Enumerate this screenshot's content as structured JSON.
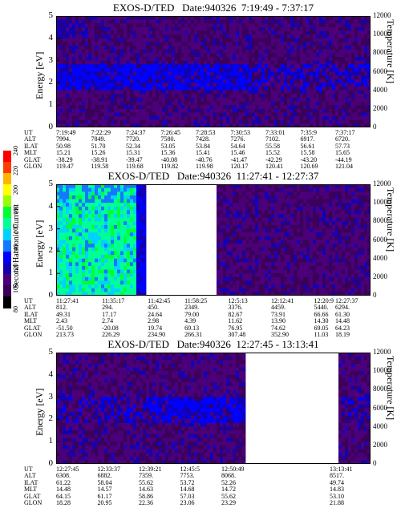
{
  "colorbar": {
    "label": "Second Harmonic Current",
    "ticks": [
      "80",
      "100",
      "120",
      "140",
      "160",
      "180",
      "200",
      "220",
      "240"
    ],
    "colors": [
      "#000000",
      "#3b0059",
      "#4b007a",
      "#1400b4",
      "#0000ff",
      "#1478ff",
      "#00d2ff",
      "#00ff96",
      "#00ff32",
      "#96ff00",
      "#ffff00",
      "#ffb400",
      "#ff3c00",
      "#ff0000"
    ]
  },
  "chart_data": [
    {
      "type": "heatmap",
      "title": "EXOS-D/TED   Date:940326  7:19:49 - 7:37:17",
      "ylabel": "Energy [eV]",
      "y2label": "Temperature [K]",
      "ylim": [
        0,
        5
      ],
      "y2lim": [
        0,
        12000
      ],
      "yticks": [
        "0",
        "1",
        "2",
        "3",
        "4",
        "5"
      ],
      "y2ticks": [
        "0",
        "2000",
        "4000",
        "6000",
        "8000",
        "10000",
        "12000"
      ],
      "bright_band": {
        "energy": [
          1.6,
          3.0
        ]
      },
      "data_gaps": [],
      "ephemeris": {
        "labels": [
          "UT",
          "ALT",
          "ILAT",
          "MLT",
          "GLAT",
          "GLON"
        ],
        "columns": [
          {
            "UT": "7:19:49",
            "ALT": "7994.",
            "ILAT": "50.98",
            "MLT": "15.21",
            "GLAT": "-38.29",
            "GLON": "119.47"
          },
          {
            "UT": "7:22:29",
            "ALT": "7849.",
            "ILAT": "51.70",
            "MLT": "15.26",
            "GLAT": "-38.91",
            "GLON": "119.58"
          },
          {
            "UT": "7:24:37",
            "ALT": "7720.",
            "ILAT": "52.34",
            "MLT": "15.31",
            "GLAT": "-39.47",
            "GLON": "119.68"
          },
          {
            "UT": "7:26:45",
            "ALT": "7580.",
            "ILAT": "53.05",
            "MLT": "15.36",
            "GLAT": "-40.08",
            "GLON": "119.82"
          },
          {
            "UT": "7:28:53",
            "ALT": "7428.",
            "ILAT": "53.84",
            "MLT": "15.41",
            "GLAT": "-40.76",
            "GLON": "119.98"
          },
          {
            "UT": "7:30:53",
            "ALT": "7276.",
            "ILAT": "54.64",
            "MLT": "15.46",
            "GLAT": "-41.47",
            "GLON": "120.17"
          },
          {
            "UT": "7:33:01",
            "ALT": "7102.",
            "ILAT": "55.58",
            "MLT": "15.52",
            "GLAT": "-42.29",
            "GLON": "120.41"
          },
          {
            "UT": "7:35:9",
            "ALT": "6917.",
            "ILAT": "56.61",
            "MLT": "15.58",
            "GLAT": "-43.20",
            "GLON": "120.69"
          },
          {
            "UT": "7:37:17",
            "ALT": "6720.",
            "ILAT": "57.73",
            "MLT": "15.65",
            "GLAT": "-44.19",
            "GLON": "121.04"
          }
        ]
      }
    },
    {
      "type": "heatmap",
      "title": "EXOS-D/TED   Date:940326  11:27:41 - 12:27:37",
      "ylabel": "Energy [eV]",
      "y2label": "Temperature [K]",
      "ylim": [
        0,
        5
      ],
      "y2lim": [
        0,
        12000
      ],
      "yticks": [
        "0",
        "1",
        "2",
        "3",
        "4",
        "5"
      ],
      "y2ticks": [
        "0",
        "2000",
        "4000",
        "6000",
        "8000",
        "10000",
        "12000"
      ],
      "data_gaps": [
        [
          0.285,
          0.51
        ]
      ],
      "ephemeris": {
        "labels": [
          "UT",
          "ALT",
          "ILAT",
          "MLT",
          "GLAT",
          "GLON"
        ],
        "columns": [
          {
            "UT": "11:27:41",
            "ALT": "812.",
            "ILAT": "49.31",
            "MLT": "2.43",
            "GLAT": "-51.50",
            "GLON": "213.73"
          },
          {
            "UT": "11:35:17",
            "ALT": "294.",
            "ILAT": "17.17",
            "MLT": "2.74",
            "GLAT": "-20.08",
            "GLON": "226.29"
          },
          {
            "UT": "11:42:45",
            "ALT": "450.",
            "ILAT": "24.64",
            "MLT": "2.98",
            "GLAT": "19.74",
            "GLON": "234.90"
          },
          {
            "UT": "11:58:25",
            "ALT": "2349.",
            "ILAT": "79.00",
            "MLT": "4.39",
            "GLAT": "69.13",
            "GLON": "266.31"
          },
          {
            "UT": "12:5:13",
            "ALT": "3376.",
            "ILAT": "82.67",
            "MLT": "11.62",
            "GLAT": "76.95",
            "GLON": "307.48"
          },
          {
            "UT": "12:12:41",
            "ALT": "4459.",
            "ILAT": "73.91",
            "MLT": "13.90",
            "GLAT": "74.62",
            "GLON": "352.90"
          },
          {
            "UT": "12:20:9",
            "ALT": "5440.",
            "ILAT": "66.66",
            "MLT": "14.30",
            "GLAT": "69.05",
            "GLON": "11.03"
          },
          {
            "UT": "12:27:37",
            "ALT": "6294.",
            "ILAT": "61.30",
            "MLT": "14.48",
            "GLAT": "64.23",
            "GLON": "18.19"
          }
        ]
      }
    },
    {
      "type": "heatmap",
      "title": "EXOS-D/TED   Date:940326  12:27:45 - 13:13:41",
      "ylabel": "Energy [eV]",
      "y2label": "Temperature [K]",
      "ylim": [
        0,
        5
      ],
      "y2lim": [
        0,
        12000
      ],
      "yticks": [
        "0",
        "1",
        "2",
        "3",
        "4",
        "5"
      ],
      "y2ticks": [
        "0",
        "2000",
        "4000",
        "6000",
        "8000",
        "10000",
        "12000"
      ],
      "data_gaps": [
        [
          0.6,
          0.9
        ]
      ],
      "ephemeris": {
        "labels": [
          "UT",
          "ALT",
          "ILAT",
          "MLT",
          "GLAT",
          "GLON"
        ],
        "columns": [
          {
            "UT": "12:27:45",
            "ALT": "6308.",
            "ILAT": "61.22",
            "MLT": "14.48",
            "GLAT": "64.15",
            "GLON": "18.28"
          },
          {
            "UT": "12:33:37",
            "ALT": "6882.",
            "ILAT": "58.04",
            "MLT": "14.57",
            "GLAT": "61.17",
            "GLON": "20.95"
          },
          {
            "UT": "12:39:21",
            "ALT": "7359.",
            "ILAT": "55.62",
            "MLT": "14.63",
            "GLAT": "58.86",
            "GLON": "22.36"
          },
          {
            "UT": "12:45:5",
            "ALT": "7753.",
            "ILAT": "53.72",
            "MLT": "14.68",
            "GLAT": "57.03",
            "GLON": "23.06"
          },
          {
            "UT": "12:50:49",
            "ALT": "8068.",
            "ILAT": "52.26",
            "MLT": "14.72",
            "GLAT": "55.62",
            "GLON": "23.29"
          },
          {
            "UT": "13:13:41",
            "ALT": "8517.",
            "ILAT": "49.74",
            "MLT": "14.83",
            "GLAT": "53.10",
            "GLON": "21.88"
          }
        ]
      }
    }
  ]
}
